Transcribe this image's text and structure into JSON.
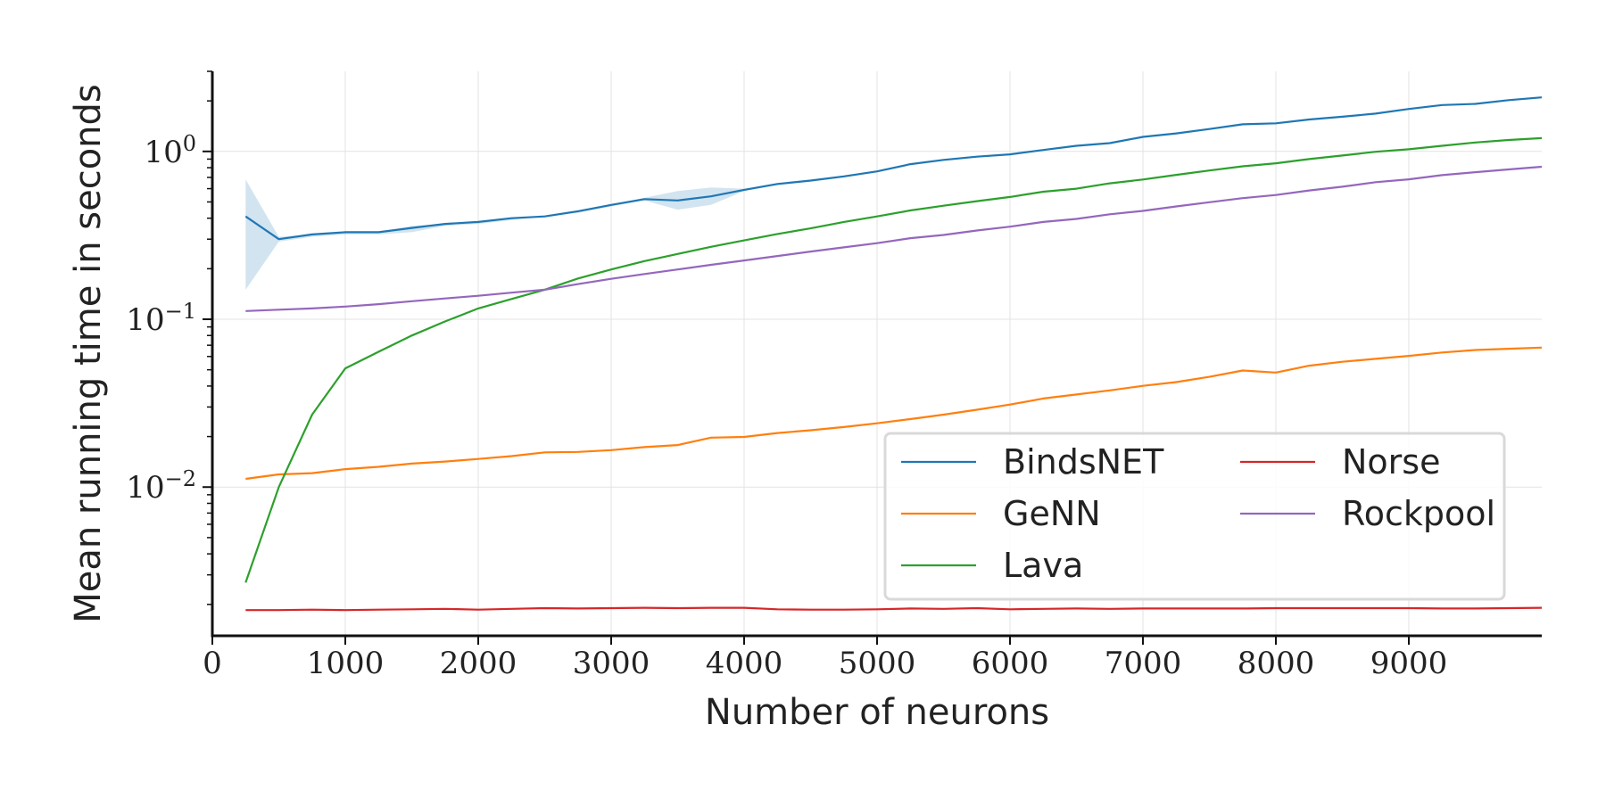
{
  "chart_data": {
    "type": "line",
    "xlabel": "Number of neurons",
    "ylabel": "Mean running time in seconds",
    "x_scale": "linear",
    "y_scale": "log",
    "xlim": [
      0,
      10000
    ],
    "ylim": [
      0.0013,
      3.0
    ],
    "grid": true,
    "legend_position": "lower-right",
    "legend_columns": 2,
    "x_ticks": [
      {
        "value": 0,
        "label": "0"
      },
      {
        "value": 1000,
        "label": "1000"
      },
      {
        "value": 2000,
        "label": "2000"
      },
      {
        "value": 3000,
        "label": "3000"
      },
      {
        "value": 4000,
        "label": "4000"
      },
      {
        "value": 5000,
        "label": "5000"
      },
      {
        "value": 6000,
        "label": "6000"
      },
      {
        "value": 7000,
        "label": "7000"
      },
      {
        "value": 8000,
        "label": "8000"
      },
      {
        "value": 9000,
        "label": "9000"
      }
    ],
    "y_ticks": [
      {
        "value": 1,
        "label_base": "10",
        "label_exp": "0"
      },
      {
        "value": 0.1,
        "label_base": "10",
        "label_exp": "−1"
      },
      {
        "value": 0.01,
        "label_base": "10",
        "label_exp": "−2"
      }
    ],
    "x": [
      250,
      500,
      750,
      1000,
      1250,
      1500,
      1750,
      2000,
      2250,
      2500,
      2750,
      3000,
      3250,
      3500,
      3750,
      4000,
      4250,
      4500,
      4750,
      5000,
      5250,
      5500,
      5750,
      6000,
      6250,
      6500,
      6750,
      7000,
      7250,
      7500,
      7750,
      8000,
      8250,
      8500,
      8750,
      9000,
      9250,
      9500,
      9750,
      10000
    ],
    "series": [
      {
        "name": "BindsNET",
        "color": "#1f77b4",
        "values": [
          0.41,
          0.3,
          0.32,
          0.33,
          0.33,
          0.35,
          0.37,
          0.38,
          0.4,
          0.41,
          0.44,
          0.48,
          0.52,
          0.51,
          0.54,
          0.59,
          0.64,
          0.67,
          0.71,
          0.76,
          0.84,
          0.89,
          0.93,
          0.96,
          1.02,
          1.08,
          1.12,
          1.22,
          1.28,
          1.36,
          1.45,
          1.47,
          1.55,
          1.61,
          1.68,
          1.79,
          1.89,
          1.92,
          2.02,
          2.1
        ],
        "band_upper": [
          0.68,
          0.31,
          0.32,
          0.33,
          0.33,
          0.36,
          0.37,
          0.38,
          0.4,
          0.41,
          0.44,
          0.48,
          0.53,
          0.58,
          0.61,
          0.6,
          0.64,
          0.67,
          0.71,
          0.76,
          0.84,
          0.89,
          0.93,
          0.96,
          1.02,
          1.08,
          1.12,
          1.22,
          1.28,
          1.36,
          1.45,
          1.47,
          1.55,
          1.61,
          1.68,
          1.79,
          1.89,
          1.92,
          2.02,
          2.1
        ],
        "band_lower": [
          0.15,
          0.29,
          0.31,
          0.32,
          0.32,
          0.33,
          0.36,
          0.37,
          0.39,
          0.41,
          0.43,
          0.47,
          0.51,
          0.45,
          0.48,
          0.58,
          0.63,
          0.66,
          0.7,
          0.75,
          0.83,
          0.88,
          0.92,
          0.95,
          1.01,
          1.07,
          1.11,
          1.21,
          1.27,
          1.35,
          1.44,
          1.46,
          1.54,
          1.6,
          1.67,
          1.78,
          1.88,
          1.91,
          2.01,
          2.09
        ]
      },
      {
        "name": "GeNN",
        "color": "#ff7f0e",
        "values": [
          0.0112,
          0.0119,
          0.0121,
          0.0128,
          0.0132,
          0.0138,
          0.0142,
          0.0147,
          0.0153,
          0.0161,
          0.0162,
          0.0166,
          0.0173,
          0.0178,
          0.0197,
          0.0199,
          0.021,
          0.0218,
          0.0228,
          0.024,
          0.0254,
          0.027,
          0.0289,
          0.031,
          0.0337,
          0.0356,
          0.0377,
          0.0401,
          0.0422,
          0.0454,
          0.0495,
          0.0481,
          0.0529,
          0.0558,
          0.0581,
          0.0605,
          0.0634,
          0.0656,
          0.0667,
          0.0678
        ]
      },
      {
        "name": "Lava",
        "color": "#2ca02c",
        "values": [
          0.0027,
          0.01,
          0.027,
          0.051,
          0.064,
          0.08,
          0.097,
          0.116,
          0.132,
          0.15,
          0.175,
          0.198,
          0.222,
          0.245,
          0.27,
          0.295,
          0.322,
          0.348,
          0.38,
          0.41,
          0.445,
          0.475,
          0.505,
          0.535,
          0.575,
          0.6,
          0.645,
          0.68,
          0.725,
          0.77,
          0.815,
          0.85,
          0.9,
          0.945,
          0.995,
          1.03,
          1.08,
          1.13,
          1.17,
          1.2
        ]
      },
      {
        "name": "Norse",
        "color": "#d62728",
        "values": [
          0.00185,
          0.00185,
          0.00186,
          0.00185,
          0.00186,
          0.00187,
          0.00188,
          0.00186,
          0.00188,
          0.0019,
          0.00189,
          0.0019,
          0.00191,
          0.0019,
          0.00191,
          0.00191,
          0.00187,
          0.00186,
          0.00186,
          0.00187,
          0.00189,
          0.00188,
          0.0019,
          0.00187,
          0.00188,
          0.00189,
          0.00188,
          0.00189,
          0.00189,
          0.00189,
          0.00189,
          0.0019,
          0.0019,
          0.0019,
          0.0019,
          0.0019,
          0.00189,
          0.00189,
          0.0019,
          0.00191
        ]
      },
      {
        "name": "Rockpool",
        "color": "#9467bd",
        "values": [
          0.112,
          0.114,
          0.116,
          0.119,
          0.123,
          0.128,
          0.133,
          0.138,
          0.144,
          0.15,
          0.162,
          0.174,
          0.186,
          0.198,
          0.211,
          0.224,
          0.238,
          0.253,
          0.268,
          0.284,
          0.304,
          0.318,
          0.338,
          0.356,
          0.38,
          0.396,
          0.422,
          0.442,
          0.47,
          0.498,
          0.527,
          0.55,
          0.585,
          0.616,
          0.656,
          0.682,
          0.722,
          0.752,
          0.781,
          0.81
        ]
      }
    ]
  }
}
